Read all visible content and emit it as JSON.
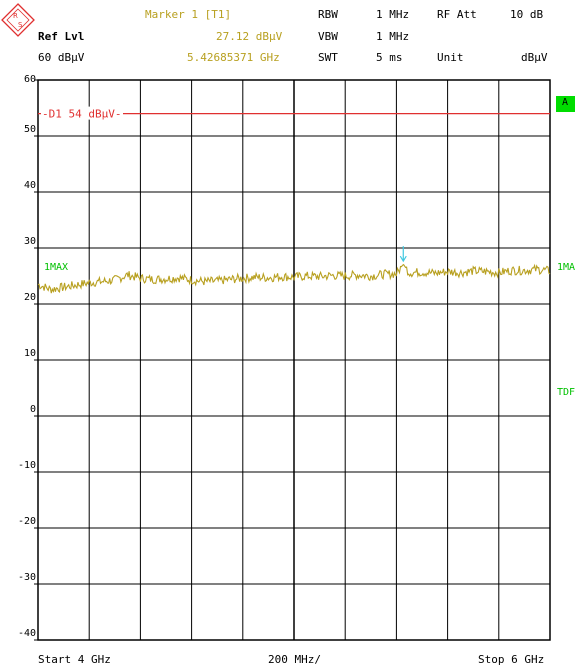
{
  "header": {
    "ref_lvl_label": "Ref Lvl",
    "ref_lvl_value": "60 dBμV",
    "marker_title": "Marker 1 [T1]",
    "marker_level": "27.12 dBμV",
    "marker_freq": "5.42685371 GHz",
    "rbw_label": "RBW",
    "rbw_value": "1 MHz",
    "vbw_label": "VBW",
    "vbw_value": "1 MHz",
    "swt_label": "SWT",
    "swt_value": "5 ms",
    "rfatt_label": "RF Att",
    "rfatt_value": "10 dB",
    "unit_label": "Unit",
    "unit_value": "dBμV"
  },
  "side_labels": {
    "trace_left": "1MAX",
    "trace_right": "1MA",
    "tdf": "TDF",
    "a_box": "A"
  },
  "footer": {
    "start": "Start 4 GHz",
    "span_per_div": "200 MHz/",
    "stop": "Stop 6 GHz"
  },
  "colors": {
    "trace": "#b8a020",
    "display_line": "#e03030",
    "marker": "#40c8e0",
    "side_text": "#00c000",
    "a_box": "#00dd00",
    "grid": "#000000"
  },
  "chart_data": {
    "type": "line",
    "x_unit": "GHz",
    "y_unit": "dBμV",
    "xlim": [
      4.0,
      6.0
    ],
    "ylim": [
      -40,
      60
    ],
    "yticks": [
      60,
      50,
      40,
      30,
      20,
      10,
      0,
      -10,
      -20,
      -30,
      -40
    ],
    "grid": true,
    "display_line": {
      "label": "D1 54 dBμV",
      "value": 54
    },
    "marker": {
      "x": 5.42685371,
      "y": 27.12
    },
    "series": [
      {
        "x": [
          4.0,
          4.05,
          4.1,
          4.15,
          4.2,
          4.25,
          4.3,
          4.35,
          4.4,
          4.45,
          4.5,
          4.55,
          4.6,
          4.65,
          4.7,
          4.75,
          4.8,
          4.85,
          4.9,
          4.95,
          5.0,
          5.05,
          5.1,
          5.15,
          5.2,
          5.25,
          5.3,
          5.35,
          5.4,
          5.427,
          5.45,
          5.5,
          5.55,
          5.6,
          5.65,
          5.7,
          5.75,
          5.8,
          5.85,
          5.9,
          5.95,
          6.0
        ],
        "y": [
          23.5,
          22.6,
          23.0,
          23.4,
          23.8,
          24.0,
          24.3,
          25.2,
          24.6,
          24.4,
          24.5,
          24.7,
          24.3,
          24.0,
          24.1,
          24.4,
          24.6,
          24.8,
          24.7,
          24.9,
          24.8,
          25.0,
          24.9,
          25.1,
          25.0,
          25.2,
          25.0,
          25.3,
          25.4,
          27.1,
          25.6,
          25.7,
          25.5,
          25.8,
          25.6,
          25.9,
          25.8,
          25.6,
          26.0,
          26.0,
          26.2,
          25.9
        ]
      }
    ]
  }
}
